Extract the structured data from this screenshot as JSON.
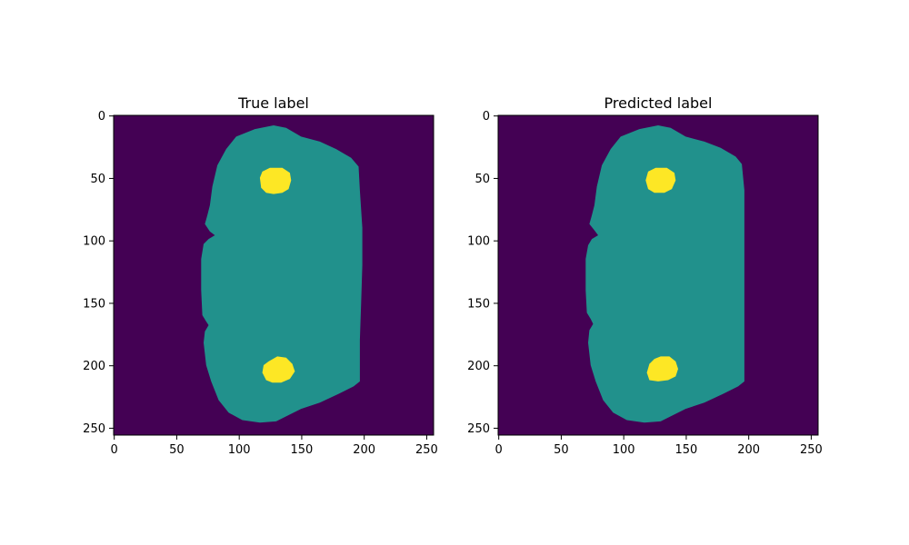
{
  "chart_data": [
    {
      "type": "heatmap",
      "title": "True label",
      "xlabel": "",
      "ylabel": "",
      "xlim": [
        0,
        256
      ],
      "ylim": [
        256,
        0
      ],
      "xticks": [
        0,
        50,
        100,
        150,
        200,
        250
      ],
      "yticks": [
        0,
        50,
        100,
        150,
        200,
        250
      ],
      "classes": [
        {
          "value": 0,
          "color": "#440154"
        },
        {
          "value": 1,
          "color": "#21918c"
        },
        {
          "value": 2,
          "color": "#fde725"
        }
      ],
      "regions": [
        {
          "class": 1,
          "polygon": [
            [
              128,
              8
            ],
            [
              113,
              11
            ],
            [
              98,
              17
            ],
            [
              90,
              27
            ],
            [
              83,
              40
            ],
            [
              79,
              57
            ],
            [
              77,
              72
            ],
            [
              75,
              80
            ],
            [
              73,
              87
            ],
            [
              77,
              93
            ],
            [
              81,
              96
            ],
            [
              76,
              99
            ],
            [
              72,
              103
            ],
            [
              70,
              115
            ],
            [
              70,
              140
            ],
            [
              71,
              160
            ],
            [
              74,
              165
            ],
            [
              76,
              168
            ],
            [
              73,
              173
            ],
            [
              72,
              182
            ],
            [
              74,
              200
            ],
            [
              78,
              213
            ],
            [
              84,
              228
            ],
            [
              92,
              238
            ],
            [
              103,
              244
            ],
            [
              117,
              246
            ],
            [
              130,
              245
            ],
            [
              140,
              240
            ],
            [
              150,
              235
            ],
            [
              165,
              230
            ],
            [
              180,
              223
            ],
            [
              192,
              217
            ],
            [
              197,
              213
            ],
            [
              197,
              180
            ],
            [
              198,
              150
            ],
            [
              199,
              120
            ],
            [
              199,
              90
            ],
            [
              197,
              60
            ],
            [
              196,
              41
            ],
            [
              190,
              34
            ],
            [
              178,
              27
            ],
            [
              165,
              21
            ],
            [
              150,
              17
            ],
            [
              138,
              10
            ]
          ]
        },
        {
          "class": 2,
          "polygon": [
            [
              125,
              42
            ],
            [
              135,
              42
            ],
            [
              141,
              46
            ],
            [
              142,
              52
            ],
            [
              140,
              59
            ],
            [
              135,
              62
            ],
            [
              128,
              63
            ],
            [
              122,
              62
            ],
            [
              118,
              58
            ],
            [
              117,
              50
            ],
            [
              119,
              45
            ]
          ]
        },
        {
          "class": 2,
          "polygon": [
            [
              131,
              193
            ],
            [
              138,
              194
            ],
            [
              143,
              199
            ],
            [
              145,
              205
            ],
            [
              141,
              211
            ],
            [
              134,
              214
            ],
            [
              127,
              214
            ],
            [
              122,
              212
            ],
            [
              119,
              206
            ],
            [
              120,
              200
            ],
            [
              124,
              197
            ]
          ]
        }
      ]
    },
    {
      "type": "heatmap",
      "title": "Predicted label",
      "xlabel": "",
      "ylabel": "",
      "xlim": [
        0,
        256
      ],
      "ylim": [
        256,
        0
      ],
      "xticks": [
        0,
        50,
        100,
        150,
        200,
        250
      ],
      "yticks": [
        0,
        50,
        100,
        150,
        200,
        250
      ],
      "classes": [
        {
          "value": 0,
          "color": "#440154"
        },
        {
          "value": 1,
          "color": "#21918c"
        },
        {
          "value": 2,
          "color": "#fde725"
        }
      ],
      "regions": [
        {
          "class": 1,
          "polygon": [
            [
              128,
              8
            ],
            [
              113,
              11
            ],
            [
              98,
              17
            ],
            [
              90,
              27
            ],
            [
              83,
              40
            ],
            [
              79,
              57
            ],
            [
              77,
              72
            ],
            [
              75,
              80
            ],
            [
              73,
              87
            ],
            [
              77,
              92
            ],
            [
              80,
              96
            ],
            [
              75,
              99
            ],
            [
              72,
              104
            ],
            [
              70,
              115
            ],
            [
              70,
              140
            ],
            [
              71,
              158
            ],
            [
              74,
              163
            ],
            [
              76,
              167
            ],
            [
              73,
              172
            ],
            [
              72,
              182
            ],
            [
              74,
              200
            ],
            [
              78,
              213
            ],
            [
              84,
              228
            ],
            [
              92,
              238
            ],
            [
              103,
              244
            ],
            [
              117,
              246
            ],
            [
              130,
              245
            ],
            [
              140,
              240
            ],
            [
              150,
              235
            ],
            [
              165,
              230
            ],
            [
              180,
              223
            ],
            [
              192,
              217
            ],
            [
              197,
              213
            ],
            [
              197,
              180
            ],
            [
              197,
              150
            ],
            [
              197,
              120
            ],
            [
              197,
              90
            ],
            [
              197,
              60
            ],
            [
              195,
              39
            ],
            [
              190,
              33
            ],
            [
              178,
              26
            ],
            [
              165,
              21
            ],
            [
              150,
              17
            ],
            [
              138,
              10
            ]
          ]
        },
        {
          "class": 2,
          "polygon": [
            [
              126,
              42
            ],
            [
              135,
              42
            ],
            [
              141,
              46
            ],
            [
              142,
              52
            ],
            [
              139,
              59
            ],
            [
              133,
              62
            ],
            [
              125,
              62
            ],
            [
              120,
              59
            ],
            [
              118,
              52
            ],
            [
              120,
              45
            ]
          ]
        },
        {
          "class": 2,
          "polygon": [
            [
              130,
              193
            ],
            [
              137,
              193
            ],
            [
              142,
              197
            ],
            [
              144,
              203
            ],
            [
              142,
              209
            ],
            [
              136,
              212
            ],
            [
              128,
              213
            ],
            [
              121,
              212
            ],
            [
              119,
              206
            ],
            [
              121,
              199
            ],
            [
              125,
              195
            ]
          ]
        }
      ]
    }
  ]
}
